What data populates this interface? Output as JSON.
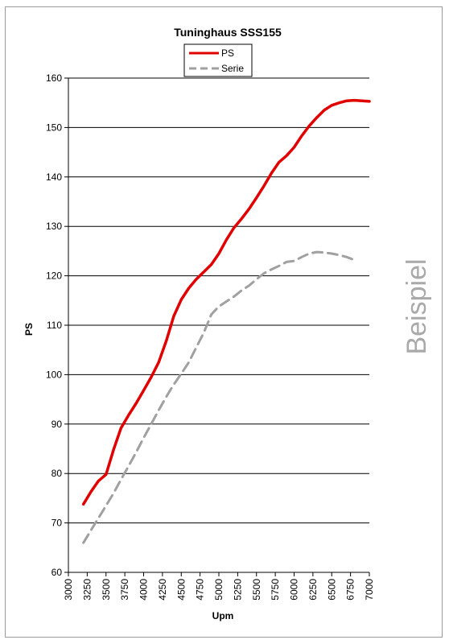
{
  "chart_data": {
    "type": "line",
    "title": "Tuninghaus SSS155",
    "xlabel": "Upm",
    "ylabel": "PS",
    "xlim": [
      3000,
      7000
    ],
    "ylim": [
      60,
      160
    ],
    "x_ticks": [
      3000,
      3250,
      3500,
      3750,
      4000,
      4250,
      4500,
      4750,
      5000,
      5250,
      5500,
      5750,
      6000,
      6250,
      6500,
      6750,
      7000
    ],
    "y_ticks": [
      60,
      70,
      80,
      90,
      100,
      110,
      120,
      130,
      140,
      150,
      160
    ],
    "grid": true,
    "legend_position": "top",
    "series": [
      {
        "name": "PS",
        "color": "#e00000",
        "style": "solid",
        "x": [
          3200,
          3300,
          3400,
          3500,
          3600,
          3700,
          3800,
          3900,
          4000,
          4100,
          4200,
          4300,
          4400,
          4500,
          4600,
          4700,
          4800,
          4900,
          5000,
          5100,
          5200,
          5300,
          5400,
          5500,
          5600,
          5700,
          5800,
          5900,
          6000,
          6100,
          6200,
          6300,
          6400,
          6500,
          6600,
          6700,
          6800,
          6900,
          7000
        ],
        "values": [
          73.8,
          76.3,
          78.5,
          79.8,
          84.8,
          89.2,
          91.8,
          94.2,
          96.8,
          99.5,
          102.5,
          106.8,
          111.8,
          115.2,
          117.5,
          119.3,
          120.8,
          122.3,
          124.5,
          127.3,
          129.7,
          131.5,
          133.5,
          135.8,
          138.2,
          140.8,
          143.0,
          144.3,
          146.0,
          148.3,
          150.3,
          152.0,
          153.5,
          154.5,
          155.0,
          155.4,
          155.5,
          155.4,
          155.3
        ]
      },
      {
        "name": "Serie",
        "color": "#a0a0a0",
        "style": "dashed",
        "x": [
          3200,
          3300,
          3400,
          3500,
          3600,
          3700,
          3800,
          3900,
          4000,
          4100,
          4200,
          4300,
          4400,
          4500,
          4600,
          4700,
          4800,
          4900,
          5000,
          5100,
          5200,
          5300,
          5400,
          5500,
          5600,
          5700,
          5800,
          5900,
          6000,
          6100,
          6200,
          6300,
          6400,
          6500,
          6600,
          6700,
          6800
        ],
        "values": [
          66.0,
          68.5,
          71.0,
          73.5,
          76.0,
          78.8,
          81.5,
          84.3,
          87.2,
          90.0,
          92.8,
          95.5,
          98.0,
          100.2,
          102.5,
          105.5,
          108.5,
          112.2,
          113.8,
          114.8,
          115.8,
          117.0,
          118.0,
          119.3,
          120.5,
          121.3,
          122.0,
          122.8,
          123.0,
          123.8,
          124.5,
          124.8,
          124.7,
          124.5,
          124.2,
          123.8,
          123.2
        ]
      }
    ]
  },
  "watermark": "Beispiel"
}
